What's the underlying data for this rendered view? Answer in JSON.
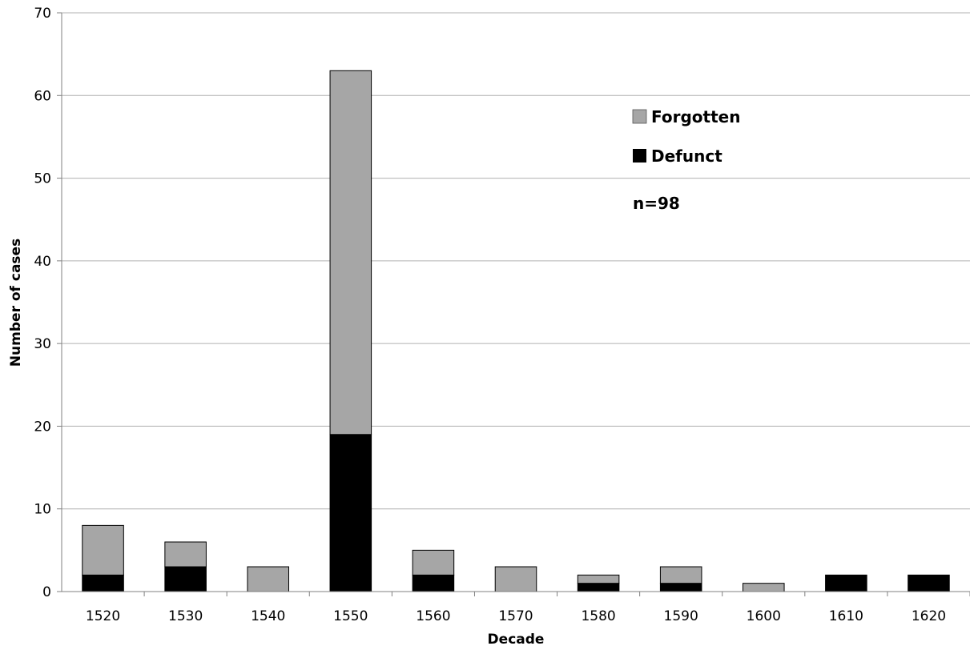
{
  "chart_data": {
    "type": "bar",
    "stacked": true,
    "title": "",
    "xlabel": "Decade",
    "ylabel": "Number of cases",
    "ylim": [
      0,
      70
    ],
    "yticks": [
      0,
      10,
      20,
      30,
      40,
      50,
      60,
      70
    ],
    "grid": true,
    "legend_position": "top-right",
    "categories": [
      "1520",
      "1530",
      "1540",
      "1550",
      "1560",
      "1570",
      "1580",
      "1590",
      "1600",
      "1610",
      "1620"
    ],
    "series": [
      {
        "name": "Defunct",
        "color": "#000000",
        "values": [
          2,
          3,
          0,
          19,
          2,
          0,
          1,
          1,
          0,
          2,
          2
        ]
      },
      {
        "name": "Forgotten",
        "color": "#a6a6a6",
        "values": [
          6,
          3,
          3,
          44,
          3,
          3,
          1,
          2,
          1,
          0,
          0
        ]
      }
    ],
    "legend_order": [
      "Forgotten",
      "Defunct"
    ],
    "annotation": "n=98"
  }
}
